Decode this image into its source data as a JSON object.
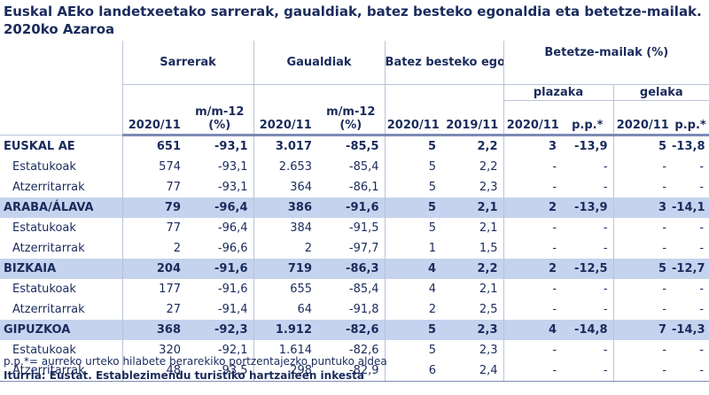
{
  "title": "Euskal AEko landetxeetako sarrerak, gaualdiak, batez besteko egonaldia eta betetze-mailak. 2020ko Azaroa",
  "headers": {
    "sarrerak": "Sarrerak",
    "gaualdiak": "Gaualdiak",
    "egonaldia": "Batez besteko egonaldia",
    "betetze": "Betetze-mailak (%)",
    "plazaka": "plazaka",
    "gelaka": "gelaka",
    "y2020": "2020/11",
    "y2019": "2019/11",
    "mm12_line1": "m/m-12",
    "mm12_line2": "(%)",
    "pp": "p.p.*"
  },
  "rows": [
    {
      "label": "EUSKAL AE",
      "kind": "region first",
      "v": [
        "651",
        "-93,1",
        "3.017",
        "-85,5",
        "5",
        "2,2",
        "3",
        "-13,9",
        "5",
        "-13,8"
      ]
    },
    {
      "label": "Estatukoak",
      "kind": "sub1",
      "v": [
        "574",
        "-93,1",
        "2.653",
        "-85,4",
        "5",
        "2,2",
        "-",
        "-",
        "-",
        "-"
      ]
    },
    {
      "label": "Atzerritarrak",
      "kind": "sub1",
      "v": [
        "77",
        "-93,1",
        "364",
        "-86,1",
        "5",
        "2,3",
        "-",
        "-",
        "-",
        "-"
      ]
    },
    {
      "label": "ARABA/ÁLAVA",
      "kind": "region",
      "v": [
        "79",
        "-96,4",
        "386",
        "-91,6",
        "5",
        "2,1",
        "2",
        "-13,9",
        "3",
        "-14,1"
      ]
    },
    {
      "label": "Estatukoak",
      "kind": "sub1",
      "v": [
        "77",
        "-96,4",
        "384",
        "-91,5",
        "5",
        "2,1",
        "-",
        "-",
        "-",
        "-"
      ]
    },
    {
      "label": "Atzerritarrak",
      "kind": "sub1",
      "v": [
        "2",
        "-96,6",
        "2",
        "-97,7",
        "1",
        "1,5",
        "-",
        "-",
        "-",
        "-"
      ]
    },
    {
      "label": "BIZKAIA",
      "kind": "region",
      "v": [
        "204",
        "-91,6",
        "719",
        "-86,3",
        "4",
        "2,2",
        "2",
        "-12,5",
        "5",
        "-12,7"
      ]
    },
    {
      "label": "Estatukoak",
      "kind": "sub1",
      "v": [
        "177",
        "-91,6",
        "655",
        "-85,4",
        "4",
        "2,1",
        "-",
        "-",
        "-",
        "-"
      ]
    },
    {
      "label": "Atzerritarrak",
      "kind": "sub1",
      "v": [
        "27",
        "-91,4",
        "64",
        "-91,8",
        "2",
        "2,5",
        "-",
        "-",
        "-",
        "-"
      ]
    },
    {
      "label": "GIPUZKOA",
      "kind": "region",
      "v": [
        "368",
        "-92,3",
        "1.912",
        "-82,6",
        "5",
        "2,3",
        "4",
        "-14,8",
        "7",
        "-14,3"
      ]
    },
    {
      "label": "Estatukoak",
      "kind": "sub1",
      "v": [
        "320",
        "-92,1",
        "1.614",
        "-82,6",
        "5",
        "2,3",
        "-",
        "-",
        "-",
        "-"
      ]
    },
    {
      "label": "Atzerritarrak",
      "kind": "sub1 last",
      "v": [
        "48",
        "-93,5",
        "298",
        "-82,9",
        "6",
        "2,4",
        "-",
        "-",
        "-",
        "-"
      ]
    }
  ],
  "footnote": "p.p.*= aurreko urteko hilabete berarekiko portzentajezko puntuko aldea",
  "source": "Iturria: Eustat. Establezimendu turistiko hartzaileen inkesta"
}
